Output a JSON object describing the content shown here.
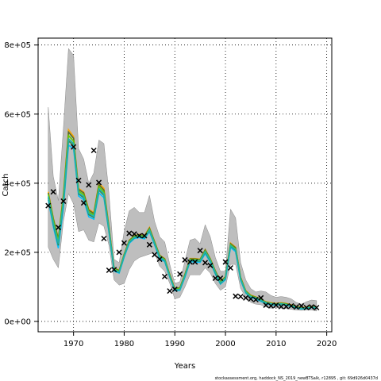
{
  "chart_data": {
    "type": "line",
    "xlabel": "Years",
    "ylabel": "Catch",
    "footnote": "stockassessment.org, haddock_NS_2019_newBTSalk, r12895 , git: 69d926d0437d",
    "xlim": [
      1963.0,
      2021.0
    ],
    "ylim": [
      -30000,
      820000
    ],
    "x_ticks": [
      1970,
      1980,
      1990,
      2000,
      2010,
      2020
    ],
    "x_tick_labels": [
      "1970",
      "1980",
      "1990",
      "2000",
      "2010",
      "2020"
    ],
    "y_ticks": [
      0,
      200000,
      400000,
      600000,
      800000
    ],
    "y_tick_labels": [
      "0e+00",
      "2e+05",
      "4e+05",
      "6e+05",
      "8e+05"
    ],
    "grid": "dotted",
    "colors": {
      "band": "#bebebe",
      "band_edge": "#8a8a8a",
      "series": [
        "#ffa500",
        "#556b2f",
        "#66cd00",
        "#00bfff",
        "#2e8b57",
        "#20b2aa"
      ],
      "observed": "#000000"
    },
    "years": [
      1965,
      1966,
      1967,
      1968,
      1969,
      1970,
      1971,
      1972,
      1973,
      1974,
      1975,
      1976,
      1977,
      1978,
      1979,
      1980,
      1981,
      1982,
      1983,
      1984,
      1985,
      1986,
      1987,
      1988,
      1989,
      1990,
      1991,
      1992,
      1993,
      1994,
      1995,
      1996,
      1997,
      1998,
      1999,
      2000,
      2001,
      2002,
      2003,
      2004,
      2005,
      2006,
      2007,
      2008,
      2009,
      2010,
      2011,
      2012,
      2013,
      2014,
      2015,
      2016,
      2017,
      2018
    ],
    "band_lower": [
      215000,
      180000,
      155000,
      290000,
      370000,
      340000,
      260000,
      265000,
      235000,
      230000,
      285000,
      275000,
      220000,
      120000,
      105000,
      110000,
      150000,
      175000,
      185000,
      190000,
      195000,
      200000,
      160000,
      145000,
      110000,
      65000,
      70000,
      100000,
      135000,
      135000,
      135000,
      155000,
      140000,
      110000,
      90000,
      100000,
      165000,
      165000,
      95000,
      70000,
      55000,
      50000,
      48000,
      42000,
      38000,
      40000,
      38000,
      37000,
      35000,
      33000,
      32000,
      33000,
      33000,
      30000
    ],
    "band_upper": [
      620000,
      420000,
      350000,
      560000,
      790000,
      770000,
      500000,
      470000,
      400000,
      430000,
      525000,
      515000,
      370000,
      180000,
      170000,
      260000,
      320000,
      330000,
      315000,
      315000,
      365000,
      290000,
      245000,
      230000,
      165000,
      110000,
      115000,
      175000,
      235000,
      240000,
      225000,
      280000,
      245000,
      185000,
      145000,
      145000,
      325000,
      300000,
      170000,
      120000,
      95000,
      85000,
      88000,
      85000,
      75000,
      70000,
      72000,
      70000,
      65000,
      55000,
      50000,
      57000,
      62000,
      60000
    ],
    "series": [
      {
        "values": [
          375000,
          300000,
          240000,
          370000,
          555000,
          535000,
          385000,
          375000,
          325000,
          315000,
          400000,
          385000,
          275000,
          155000,
          148000,
          195000,
          235000,
          248000,
          252000,
          248000,
          272000,
          232000,
          192000,
          182000,
          136000,
          96000,
          98000,
          137000,
          182000,
          182000,
          180000,
          208000,
          182000,
          147000,
          116000,
          130000,
          227000,
          215000,
          128000,
          89000,
          76000,
          71000,
          64000,
          57000,
          54000,
          52000,
          54000,
          52000,
          48000,
          44000,
          40000,
          41000,
          44000,
          42000
        ]
      },
      {
        "values": [
          372000,
          298000,
          238000,
          365000,
          548000,
          530000,
          382000,
          372000,
          322000,
          312000,
          396000,
          380000,
          272000,
          154000,
          147000,
          194000,
          234000,
          247000,
          251000,
          247000,
          270000,
          231000,
          191000,
          181000,
          135000,
          95000,
          97000,
          136000,
          181000,
          181000,
          179000,
          207000,
          181000,
          146000,
          115000,
          129000,
          225000,
          213000,
          127000,
          88000,
          75000,
          70000,
          63000,
          56000,
          53000,
          51000,
          53000,
          51000,
          47000,
          43000,
          39000,
          40000,
          43000,
          41000
        ]
      },
      {
        "values": [
          368000,
          293000,
          232000,
          358000,
          538000,
          522000,
          377000,
          367000,
          317000,
          308000,
          390000,
          374000,
          268000,
          152000,
          145000,
          192000,
          232000,
          245000,
          249000,
          245000,
          267000,
          228000,
          189000,
          179000,
          133000,
          93000,
          95000,
          134000,
          179000,
          179000,
          177000,
          204000,
          179000,
          144000,
          113000,
          127000,
          222000,
          210000,
          125000,
          87000,
          74000,
          69000,
          62000,
          55000,
          52000,
          50000,
          52000,
          50000,
          46000,
          42000,
          38000,
          39000,
          42000,
          40000
        ]
      },
      {
        "values": [
          352000,
          275000,
          212000,
          330000,
          510000,
          500000,
          363000,
          352000,
          303000,
          296000,
          372000,
          358000,
          258000,
          146000,
          140000,
          186000,
          226000,
          240000,
          243000,
          239000,
          260000,
          222000,
          183000,
          173000,
          128000,
          89000,
          90000,
          128000,
          173000,
          172000,
          171000,
          196000,
          172000,
          137000,
          108000,
          121000,
          214000,
          202000,
          119000,
          82000,
          69000,
          65000,
          58000,
          51000,
          48000,
          47000,
          49000,
          47000,
          43000,
          39000,
          36000,
          37000,
          40000,
          38000
        ]
      },
      {
        "values": [
          358000,
          282000,
          220000,
          342000,
          522000,
          510000,
          369000,
          358000,
          309000,
          301000,
          380000,
          365000,
          262000,
          148000,
          142000,
          189000,
          229000,
          242000,
          246000,
          242000,
          263000,
          225000,
          186000,
          176000,
          130000,
          91000,
          92000,
          131000,
          176000,
          175000,
          174000,
          200000,
          175000,
          140000,
          110000,
          124000,
          218000,
          206000,
          122000,
          84000,
          71000,
          67000,
          60000,
          53000,
          50000,
          48000,
          50000,
          48000,
          44000,
          40000,
          37000,
          38000,
          41000,
          39000
        ]
      },
      {
        "values": [
          362000,
          286000,
          225000,
          348000,
          528000,
          515000,
          372000,
          362000,
          313000,
          304000,
          384000,
          369000,
          265000,
          150000,
          143000,
          190000,
          230000,
          243000,
          247000,
          243000,
          265000,
          226000,
          187000,
          177000,
          131000,
          92000,
          93000,
          132000,
          177000,
          177000,
          175000,
          202000,
          177000,
          142000,
          111000,
          125000,
          220000,
          208000,
          123000,
          85000,
          72000,
          68000,
          61000,
          54000,
          51000,
          49000,
          51000,
          49000,
          45000,
          41000,
          37500,
          38500,
          41500,
          39500
        ]
      }
    ],
    "observed": [
      335000,
      375000,
      272000,
      348000,
      null,
      505000,
      408000,
      343000,
      395000,
      495000,
      402000,
      240000,
      148000,
      150000,
      200000,
      227000,
      255000,
      253000,
      248000,
      248000,
      222000,
      193000,
      180000,
      130000,
      88000,
      93000,
      137000,
      178000,
      172000,
      172000,
      205000,
      170000,
      162000,
      125000,
      125000,
      172000,
      155000,
      73000,
      72000,
      68000,
      65000,
      63000,
      68000,
      47000,
      45000,
      47000,
      43000,
      43000,
      45000,
      42000,
      45000,
      40000,
      42000,
      40000
    ]
  }
}
